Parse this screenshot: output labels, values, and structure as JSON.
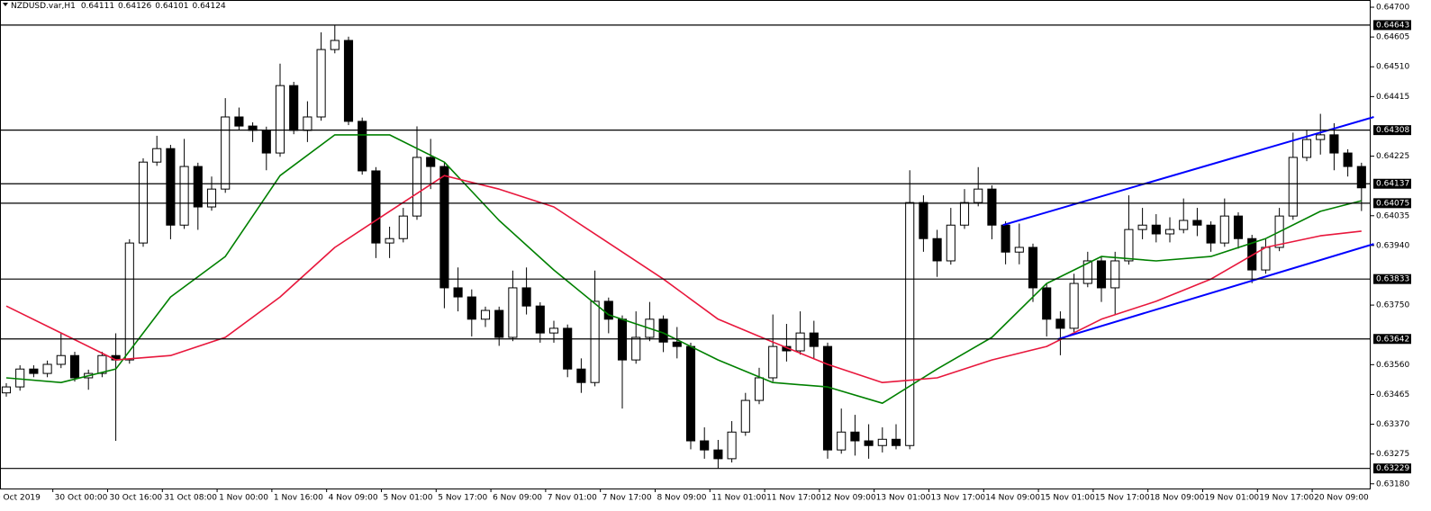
{
  "chart_data": {
    "type": "candlestick",
    "title": "NZDUSD.var,H1",
    "quote": [
      0.64111,
      0.64126,
      0.64101,
      0.64124
    ],
    "open": [
      0.6347,
      0.63489,
      0.63546,
      0.63532,
      0.63561,
      0.63589,
      0.63518,
      0.63532,
      0.63589,
      0.63575,
      0.63948,
      0.64206,
      0.64249,
      0.64005,
      0.64192,
      0.64063,
      0.6412,
      0.6435,
      0.64321,
      0.64307,
      0.64235,
      0.6445,
      0.64307,
      0.6435,
      0.64565,
      0.64594,
      0.64336,
      0.64178,
      0.63948,
      0.63962,
      0.64034,
      0.64221,
      0.64192,
      0.63805,
      0.63776,
      0.63705,
      0.63733,
      0.63647,
      0.63805,
      0.63747,
      0.63661,
      0.63676,
      0.63546,
      0.63503,
      0.63762,
      0.63705,
      0.63575,
      0.63647,
      0.63705,
      0.63632,
      0.63618,
      0.63317,
      0.63288,
      0.6326,
      0.63345,
      0.63446,
      0.63518,
      0.63618,
      0.63604,
      0.63661,
      0.63618,
      0.63288,
      0.63345,
      0.63317,
      0.63302,
      0.63322,
      0.63302,
      0.64077,
      0.63962,
      0.63891,
      0.64005,
      0.64077,
      0.6412,
      0.64005,
      0.63919,
      0.63934,
      0.63805,
      0.63705,
      0.63676,
      0.63819,
      0.63891,
      0.63805,
      0.63891,
      0.63991,
      0.64005,
      0.63977,
      0.63991,
      0.6402,
      0.64005,
      0.63948,
      0.64034,
      0.63962,
      0.63862,
      0.63934,
      0.64034,
      0.64221,
      0.64278,
      0.64293,
      0.64235,
      0.64192
    ],
    "high": [
      0.63501,
      0.63558,
      0.63558,
      0.63573,
      0.6366,
      0.63601,
      0.63544,
      0.63601,
      0.6366,
      0.6396,
      0.64218,
      0.6429,
      0.64261,
      0.6428,
      0.64204,
      0.6416,
      0.6441,
      0.6438,
      0.64333,
      0.64319,
      0.6452,
      0.64462,
      0.644,
      0.6462,
      0.64643,
      0.64606,
      0.64348,
      0.6419,
      0.64,
      0.6406,
      0.6432,
      0.6428,
      0.64204,
      0.6387,
      0.638,
      0.63745,
      0.63745,
      0.6386,
      0.6387,
      0.63759,
      0.637,
      0.63688,
      0.6358,
      0.6386,
      0.63774,
      0.63717,
      0.6373,
      0.6376,
      0.63717,
      0.6368,
      0.6363,
      0.6336,
      0.6332,
      0.6338,
      0.6347,
      0.6355,
      0.6372,
      0.6369,
      0.6373,
      0.637,
      0.6363,
      0.6342,
      0.634,
      0.6337,
      0.6336,
      0.6337,
      0.6418,
      0.641,
      0.6399,
      0.6406,
      0.6412,
      0.6419,
      0.64132,
      0.64017,
      0.6401,
      0.63946,
      0.63817,
      0.6373,
      0.6385,
      0.6392,
      0.63903,
      0.6392,
      0.641,
      0.6406,
      0.6404,
      0.6403,
      0.6409,
      0.6406,
      0.64017,
      0.6409,
      0.64046,
      0.63974,
      0.6396,
      0.6406,
      0.643,
      0.6431,
      0.6436,
      0.6433,
      0.64247,
      0.64204
    ],
    "low": [
      0.63458,
      0.63477,
      0.6352,
      0.6352,
      0.63549,
      0.63506,
      0.6348,
      0.6352,
      0.63317,
      0.63563,
      0.63936,
      0.64194,
      0.6396,
      0.63993,
      0.6399,
      0.64051,
      0.64108,
      0.64309,
      0.6427,
      0.6418,
      0.64223,
      0.64295,
      0.6427,
      0.64338,
      0.64553,
      0.64324,
      0.64166,
      0.639,
      0.639,
      0.6395,
      0.64022,
      0.6412,
      0.6374,
      0.6373,
      0.6365,
      0.6368,
      0.6362,
      0.63635,
      0.6372,
      0.6363,
      0.6363,
      0.6352,
      0.6347,
      0.63491,
      0.6366,
      0.6342,
      0.63563,
      0.63635,
      0.636,
      0.6358,
      0.6329,
      0.6326,
      0.63229,
      0.63248,
      0.63333,
      0.63434,
      0.63506,
      0.6357,
      0.63592,
      0.6358,
      0.6326,
      0.63276,
      0.6327,
      0.6326,
      0.6328,
      0.6329,
      0.6329,
      0.6392,
      0.6384,
      0.63879,
      0.63993,
      0.64065,
      0.6396,
      0.6388,
      0.6388,
      0.6376,
      0.6365,
      0.6359,
      0.63664,
      0.63807,
      0.6376,
      0.6372,
      0.63879,
      0.6396,
      0.6395,
      0.6395,
      0.63979,
      0.6397,
      0.6392,
      0.63936,
      0.6393,
      0.6382,
      0.6385,
      0.63922,
      0.64022,
      0.64209,
      0.6423,
      0.6418,
      0.6416,
      0.6405
    ],
    "close": [
      0.63489,
      0.63546,
      0.63532,
      0.63561,
      0.63589,
      0.63518,
      0.63532,
      0.63589,
      0.63575,
      0.63948,
      0.64206,
      0.64249,
      0.64005,
      0.64192,
      0.64063,
      0.6412,
      0.6435,
      0.64321,
      0.64307,
      0.64235,
      0.6445,
      0.64307,
      0.6435,
      0.64565,
      0.64594,
      0.64336,
      0.64178,
      0.63948,
      0.63962,
      0.64034,
      0.64221,
      0.64192,
      0.63805,
      0.63776,
      0.63705,
      0.63733,
      0.63647,
      0.63805,
      0.63747,
      0.63661,
      0.63676,
      0.63546,
      0.63503,
      0.63762,
      0.63705,
      0.63575,
      0.63647,
      0.63705,
      0.63632,
      0.63618,
      0.63317,
      0.63288,
      0.6326,
      0.63345,
      0.63446,
      0.63518,
      0.63618,
      0.63604,
      0.63661,
      0.63618,
      0.63288,
      0.63345,
      0.63317,
      0.63302,
      0.63322,
      0.63302,
      0.64077,
      0.63962,
      0.63891,
      0.64005,
      0.64077,
      0.6412,
      0.64005,
      0.63919,
      0.63934,
      0.63805,
      0.63705,
      0.63676,
      0.63819,
      0.63891,
      0.63805,
      0.63891,
      0.63991,
      0.64005,
      0.63977,
      0.63991,
      0.6402,
      0.64005,
      0.63948,
      0.64034,
      0.63962,
      0.63862,
      0.63934,
      0.64034,
      0.64221,
      0.64278,
      0.64293,
      0.64235,
      0.64192,
      0.64124
    ],
    "lines": [
      {
        "color": "#008000",
        "x": [
          0,
          4,
          8,
          12,
          16,
          20,
          24,
          28,
          32,
          36,
          40,
          44,
          48,
          52,
          56,
          60,
          64,
          68,
          72,
          76,
          80,
          84,
          88,
          92,
          96,
          99
        ],
        "values": [
          0.63518,
          0.63503,
          0.63546,
          0.63776,
          0.63905,
          0.64163,
          0.64293,
          0.64293,
          0.64206,
          0.6402,
          0.63862,
          0.63719,
          0.63661,
          0.63575,
          0.63503,
          0.63489,
          0.63437,
          0.63546,
          0.63647,
          0.63819,
          0.63905,
          0.63891,
          0.63905,
          0.63962,
          0.64049,
          0.64083
        ]
      },
      {
        "color": "#e8173c",
        "x": [
          0,
          4,
          8,
          12,
          16,
          20,
          24,
          28,
          32,
          36,
          40,
          44,
          48,
          52,
          56,
          60,
          64,
          68,
          72,
          76,
          80,
          84,
          88,
          92,
          96,
          99
        ],
        "values": [
          0.63747,
          0.63661,
          0.63575,
          0.63589,
          0.63647,
          0.63776,
          0.63934,
          0.64049,
          0.64163,
          0.6412,
          0.64063,
          0.63948,
          0.63833,
          0.63705,
          0.63632,
          0.63561,
          0.63503,
          0.63518,
          0.63575,
          0.63618,
          0.63705,
          0.63762,
          0.63833,
          0.63934,
          0.63971,
          0.63986
        ]
      }
    ],
    "trendlines": [
      {
        "color": "#0000ff",
        "x": [
          72.8,
          99.9
        ],
        "values": [
          0.64005,
          0.6435
        ]
      },
      {
        "color": "#0000ff",
        "x": [
          76.8,
          99.9
        ],
        "values": [
          0.63641,
          0.63945
        ]
      }
    ],
    "levels": [
      0.64643,
      0.64308,
      0.64137,
      0.64075,
      0.63833,
      0.63642,
      0.63229
    ],
    "ylim": [
      0.63165,
      0.64723
    ],
    "xlim": [
      -0.46,
      99.67
    ],
    "yticks": [
      {
        "value": 0.647,
        "label": "0.64700"
      },
      {
        "value": 0.64605,
        "label": "0.64605"
      },
      {
        "value": 0.6451,
        "label": "0.64510"
      },
      {
        "value": 0.64415,
        "label": "0.64415"
      },
      {
        "value": 0.64225,
        "label": "0.64225"
      },
      {
        "value": 0.64035,
        "label": "0.64035"
      },
      {
        "value": 0.6394,
        "label": "0.63940"
      },
      {
        "value": 0.6375,
        "label": "0.63750"
      },
      {
        "value": 0.6356,
        "label": "0.63560"
      },
      {
        "value": 0.63465,
        "label": "0.63465"
      },
      {
        "value": 0.6337,
        "label": "0.63370"
      },
      {
        "value": 0.63275,
        "label": "0.63275"
      },
      {
        "value": 0.6318,
        "label": "0.63180"
      }
    ],
    "xticks": [
      {
        "value": -1.3,
        "label": "29 Oct 2019"
      },
      {
        "value": 3.4,
        "label": "30 Oct 00:00"
      },
      {
        "value": 7.4,
        "label": "30 Oct 16:00"
      },
      {
        "value": 11.4,
        "label": "31 Oct 08:00"
      },
      {
        "value": 15.4,
        "label": "1 Nov 00:00"
      },
      {
        "value": 19.4,
        "label": "1 Nov 16:00"
      },
      {
        "value": 23.4,
        "label": "4 Nov 09:00"
      },
      {
        "value": 27.4,
        "label": "5 Nov 01:00"
      },
      {
        "value": 31.4,
        "label": "5 Nov 17:00"
      },
      {
        "value": 35.4,
        "label": "6 Nov 09:00"
      },
      {
        "value": 39.4,
        "label": "7 Nov 01:00"
      },
      {
        "value": 43.4,
        "label": "7 Nov 17:00"
      },
      {
        "value": 47.4,
        "label": "8 Nov 09:00"
      },
      {
        "value": 51.4,
        "label": "11 Nov 01:00"
      },
      {
        "value": 55.4,
        "label": "11 Nov 17:00"
      },
      {
        "value": 59.4,
        "label": "12 Nov 09:00"
      },
      {
        "value": 63.4,
        "label": "13 Nov 01:00"
      },
      {
        "value": 67.4,
        "label": "13 Nov 17:00"
      },
      {
        "value": 71.4,
        "label": "14 Nov 09:00"
      },
      {
        "value": 75.4,
        "label": "15 Nov 01:00"
      },
      {
        "value": 79.4,
        "label": "15 Nov 17:00"
      },
      {
        "value": 83.4,
        "label": "18 Nov 09:00"
      },
      {
        "value": 87.4,
        "label": "19 Nov 01:00"
      },
      {
        "value": 91.4,
        "label": "19 Nov 17:00"
      },
      {
        "value": 95.4,
        "label": "20 Nov 09:00"
      }
    ]
  }
}
